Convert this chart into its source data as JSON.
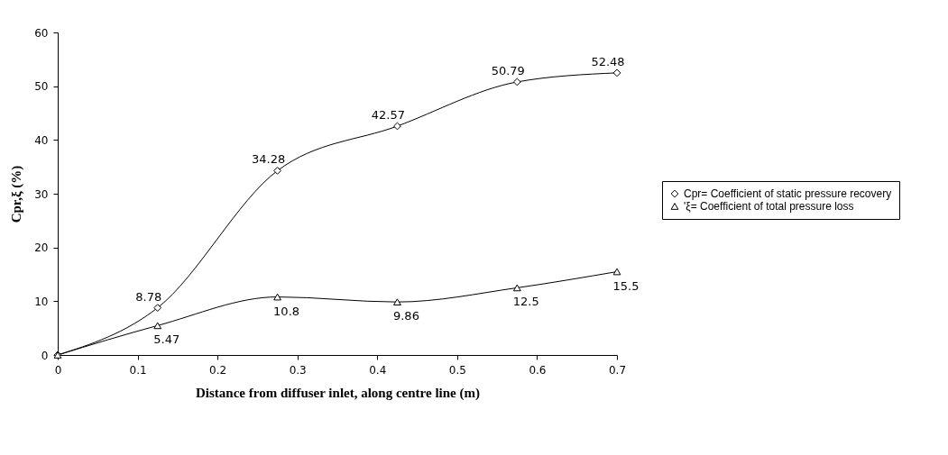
{
  "chart_data": {
    "type": "line",
    "xlabel": "Distance from diffuser inlet, along centre line (m)",
    "ylabel": "Cpr,ξ (%)",
    "x": [
      0,
      0.125,
      0.275,
      0.425,
      0.575,
      0.7
    ],
    "xlim": [
      0,
      0.7
    ],
    "xticks": [
      0,
      0.1,
      0.2,
      0.3,
      0.4,
      0.5,
      0.6,
      0.7
    ],
    "ylim": [
      0,
      60
    ],
    "yticks": [
      0,
      10,
      20,
      30,
      40,
      50,
      60
    ],
    "grid": false,
    "legend": "right",
    "line_style": "solid",
    "series": [
      {
        "name": "Cpr= Coefficient of static pressure recovery",
        "color": "#000000",
        "marker": "diamond",
        "values": [
          0,
          8.78,
          34.28,
          42.57,
          50.79,
          52.48
        ],
        "value_labels": [
          null,
          "8.78",
          "34.28",
          "42.57",
          "50.79",
          "52.48"
        ]
      },
      {
        "name": "'ξ= Coefficient of total pressure loss",
        "color": "#000000",
        "marker": "triangle",
        "values": [
          0,
          5.47,
          10.8,
          9.86,
          12.5,
          15.5
        ],
        "value_labels": [
          null,
          "5.47",
          "10.8",
          "9.86",
          "12.5",
          "15.5"
        ]
      }
    ]
  }
}
